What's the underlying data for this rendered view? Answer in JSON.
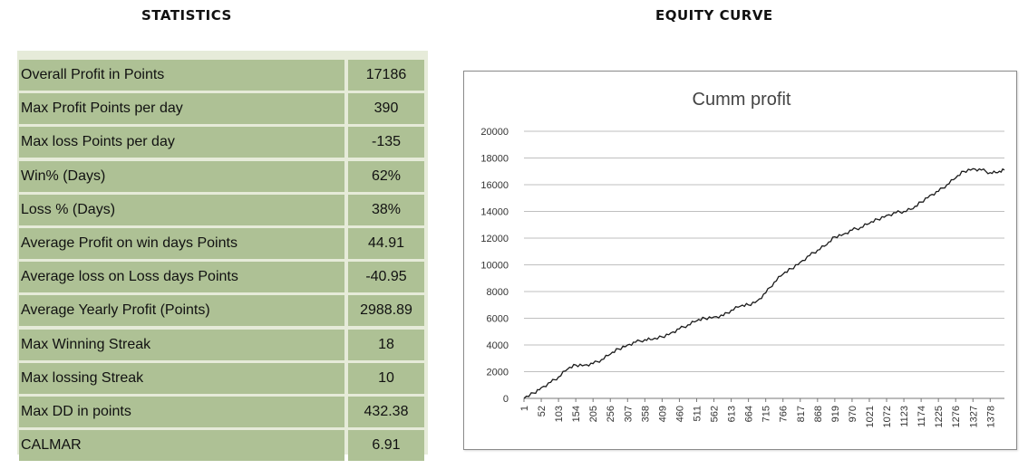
{
  "headings": {
    "statistics": "STATISTICS",
    "equity": "EQUITY CURVE"
  },
  "stats": [
    {
      "label": "Overall Profit in Points",
      "value": "17186"
    },
    {
      "label": "Max Profit Points per day",
      "value": "390"
    },
    {
      "label": "Max loss Points per day",
      "value": "-135"
    },
    {
      "label": "Win% (Days)",
      "value": "62%"
    },
    {
      "label": "Loss % (Days)",
      "value": "38%"
    },
    {
      "label": "Average Profit on win days Points",
      "value": "44.91"
    },
    {
      "label": "Average loss on Loss days Points",
      "value": "-40.95"
    },
    {
      "label": "Average Yearly Profit (Points)",
      "value": "2988.89"
    },
    {
      "label": "Max Winning Streak",
      "value": "18"
    },
    {
      "label": "Max lossing Streak",
      "value": "10"
    },
    {
      "label": "Max DD in points",
      "value": "432.38"
    },
    {
      "label": "CALMAR",
      "value": "6.91"
    }
  ],
  "chart_data": {
    "type": "line",
    "title": "Cumm profit",
    "ylim": [
      0,
      20000
    ],
    "yticks": [
      0,
      2000,
      4000,
      6000,
      8000,
      10000,
      12000,
      14000,
      16000,
      18000,
      20000
    ],
    "xlim": [
      1,
      1420
    ],
    "xticks": [
      1,
      52,
      103,
      154,
      205,
      256,
      307,
      358,
      409,
      460,
      511,
      562,
      613,
      664,
      715,
      766,
      817,
      868,
      919,
      970,
      1021,
      1072,
      1123,
      1174,
      1225,
      1276,
      1327,
      1378
    ],
    "grid": true,
    "legend": "none",
    "line_color": "#1a1a1a",
    "series": [
      {
        "x": [
          1,
          30,
          52,
          80,
          103,
          130,
          154,
          180,
          205,
          230,
          256,
          280,
          307,
          330,
          358,
          380,
          409,
          435,
          460,
          485,
          511,
          535,
          562,
          590,
          613,
          640,
          664,
          690,
          715,
          740,
          766,
          790,
          817,
          845,
          868,
          895,
          919,
          945,
          970,
          995,
          1021,
          1045,
          1072,
          1100,
          1123,
          1150,
          1174,
          1200,
          1225,
          1250,
          1276,
          1300,
          1327,
          1352,
          1378,
          1400,
          1420
        ],
        "values": [
          0,
          400,
          800,
          1200,
          1600,
          2200,
          2500,
          2500,
          2600,
          2900,
          3300,
          3700,
          4000,
          4200,
          4400,
          4400,
          4600,
          4900,
          5200,
          5500,
          5800,
          6000,
          6100,
          6200,
          6600,
          6900,
          7000,
          7300,
          7900,
          8700,
          9300,
          9700,
          10200,
          10700,
          11100,
          11500,
          12100,
          12300,
          12600,
          12800,
          13100,
          13400,
          13700,
          13900,
          14000,
          14200,
          14700,
          15200,
          15500,
          16000,
          16500,
          17000,
          17200,
          17100,
          16900,
          16900,
          17100
        ]
      }
    ]
  }
}
